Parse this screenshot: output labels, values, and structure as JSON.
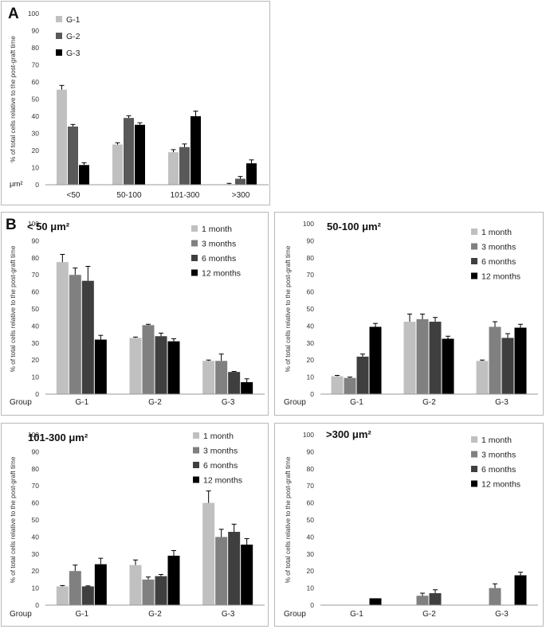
{
  "labels": {
    "panel_a": "A",
    "panel_b": "B"
  },
  "colors": {
    "1 month": "#c0c0c0",
    "3 months": "#808080",
    "6 months": "#3f3f3f",
    "12 months": "#000000",
    "G-1": "#c0c0c0",
    "G-2": "#595959",
    "G-3": "#000000"
  },
  "chart_data": [
    {
      "type": "bar",
      "title": "",
      "xlabel": "",
      "xunit": "μm²",
      "ylabel": "% of total cells relative to the post-graft time",
      "ylim": [
        0,
        100
      ],
      "yticks": [
        0,
        10,
        20,
        30,
        40,
        50,
        60,
        70,
        80,
        90,
        100
      ],
      "categories": [
        "<50",
        "50-100",
        "101-300",
        ">300"
      ],
      "legend": "top-left",
      "series": [
        {
          "name": "G-1",
          "values": [
            55.5,
            23.5,
            19.0,
            0.3
          ],
          "errors": [
            2.5,
            1.0,
            1.5,
            0.5
          ]
        },
        {
          "name": "G-2",
          "values": [
            34.0,
            39.0,
            22.0,
            3.5
          ],
          "errors": [
            1.2,
            1.3,
            1.8,
            1.3
          ]
        },
        {
          "name": "G-3",
          "values": [
            11.5,
            35.0,
            40.0,
            12.5
          ],
          "errors": [
            1.3,
            1.2,
            3.0,
            2.0
          ]
        }
      ]
    },
    {
      "type": "bar",
      "title": "< 50 μm²",
      "xlabel": "Group",
      "ylabel": "% of total cells relative to the post-graft time",
      "ylim": [
        0,
        100
      ],
      "yticks": [
        0,
        10,
        20,
        30,
        40,
        50,
        60,
        70,
        80,
        90,
        100
      ],
      "categories": [
        "G-1",
        "G-2",
        "G-3"
      ],
      "legend": "top-right",
      "series": [
        {
          "name": "1 month",
          "values": [
            77.5,
            33.0,
            19.5
          ],
          "errors": [
            4.5,
            0.5,
            0.5
          ]
        },
        {
          "name": "3 months",
          "values": [
            70.0,
            40.5,
            19.5
          ],
          "errors": [
            4.0,
            0.5,
            4.0
          ]
        },
        {
          "name": "6 months",
          "values": [
            66.5,
            34.0,
            13.0
          ],
          "errors": [
            8.5,
            1.8,
            0.3
          ]
        },
        {
          "name": "12 months",
          "values": [
            32.0,
            31.0,
            7.0
          ],
          "errors": [
            2.5,
            1.5,
            2.0
          ]
        }
      ]
    },
    {
      "type": "bar",
      "title": "50-100 μm²",
      "xlabel": "Group",
      "ylabel": "% of total cells relative to the post-graft time",
      "ylim": [
        0,
        100
      ],
      "yticks": [
        0,
        10,
        20,
        30,
        40,
        50,
        60,
        70,
        80,
        90,
        100
      ],
      "categories": [
        "G-1",
        "G-2",
        "G-3"
      ],
      "legend": "top-right",
      "series": [
        {
          "name": "1 month",
          "values": [
            10.5,
            42.5,
            19.5
          ],
          "errors": [
            0.5,
            4.5,
            0.5
          ]
        },
        {
          "name": "3 months",
          "values": [
            9.5,
            44.0,
            39.5
          ],
          "errors": [
            0.5,
            3.0,
            3.0
          ]
        },
        {
          "name": "6 months",
          "values": [
            22.0,
            42.5,
            33.0
          ],
          "errors": [
            1.5,
            2.5,
            2.5
          ]
        },
        {
          "name": "12 months",
          "values": [
            39.5,
            32.5,
            39.0
          ],
          "errors": [
            2.0,
            1.5,
            2.0
          ]
        }
      ]
    },
    {
      "type": "bar",
      "title": "101-300 μm²",
      "xlabel": "Group",
      "ylabel": "% of total cells relative to the post-graft time",
      "ylim": [
        0,
        100
      ],
      "yticks": [
        0,
        10,
        20,
        30,
        40,
        50,
        60,
        70,
        80,
        90,
        100
      ],
      "categories": [
        "G-1",
        "G-2",
        "G-3"
      ],
      "legend": "top-right",
      "series": [
        {
          "name": "1 month",
          "values": [
            11.0,
            23.5,
            60.0
          ],
          "errors": [
            0.5,
            3.0,
            7.0
          ]
        },
        {
          "name": "3 months",
          "values": [
            20.0,
            15.0,
            40.0
          ],
          "errors": [
            3.5,
            1.5,
            4.5
          ]
        },
        {
          "name": "6 months",
          "values": [
            11.0,
            17.0,
            43.0
          ],
          "errors": [
            0.3,
            1.0,
            4.5
          ]
        },
        {
          "name": "12 months",
          "values": [
            24.0,
            29.0,
            35.5
          ],
          "errors": [
            3.5,
            3.0,
            3.5
          ]
        }
      ]
    },
    {
      "type": "bar",
      "title": ">300 μm²",
      "xlabel": "Group",
      "ylabel": "% of total cells relative to the post-graft time",
      "ylim": [
        0,
        100
      ],
      "yticks": [
        0,
        10,
        20,
        30,
        40,
        50,
        60,
        70,
        80,
        90,
        100
      ],
      "categories": [
        "G-1",
        "G-2",
        "G-3"
      ],
      "legend": "top-right",
      "series": [
        {
          "name": "1 month",
          "values": [
            0,
            0,
            0
          ],
          "errors": [
            0,
            0,
            0
          ]
        },
        {
          "name": "3 months",
          "values": [
            0,
            5.5,
            10.0
          ],
          "errors": [
            0,
            1.5,
            2.5
          ]
        },
        {
          "name": "6 months",
          "values": [
            0,
            7.0,
            0
          ],
          "errors": [
            0,
            2.0,
            0
          ]
        },
        {
          "name": "12 months",
          "values": [
            4.0,
            0,
            17.5
          ],
          "errors": [
            0,
            0,
            1.8
          ]
        }
      ]
    }
  ]
}
